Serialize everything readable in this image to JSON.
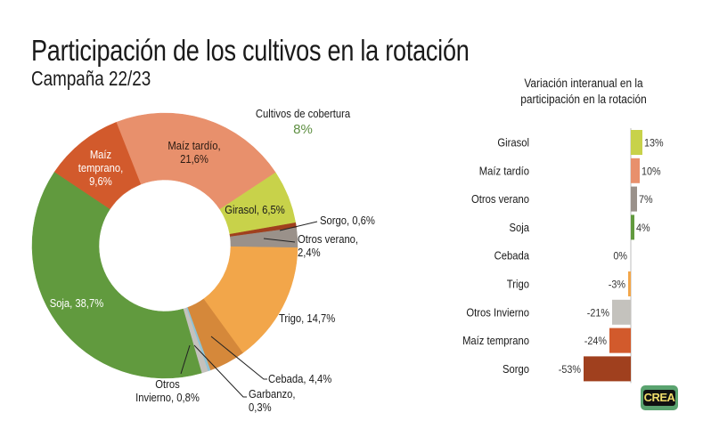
{
  "header": {
    "title": "Participación de los cultivos en la rotación",
    "subtitle": "Campaña 22/23"
  },
  "logo": {
    "text": "CREA"
  },
  "chart_data": [
    {
      "type": "pie",
      "variant": "donut",
      "title": "Participación de los cultivos en la rotación",
      "subtitle": "Campaña 22/23",
      "unit": "%",
      "annotation": {
        "label": "Cultivos de cobertura",
        "value": "8%",
        "color": "#5e8f42"
      },
      "slices": [
        {
          "name": "Maíz tardío",
          "value": 21.6,
          "label_lines": [
            "Maíz tardío,",
            "21,6%"
          ],
          "color": "#e8906c",
          "text_color": "#2a1a12"
        },
        {
          "name": "Girasol",
          "value": 6.5,
          "label_lines": [
            "Girasol, 6,5%"
          ],
          "color": "#c8d24a",
          "text_color": "#1a1a1a"
        },
        {
          "name": "Sorgo",
          "value": 0.6,
          "label_lines": [
            "Sorgo, 0,6%"
          ],
          "color": "#a0401e",
          "text_color": "#1a1a1a"
        },
        {
          "name": "Otros verano",
          "value": 2.4,
          "label_lines": [
            "Otros verano,",
            "2,4%"
          ],
          "color": "#9a918a",
          "text_color": "#1a1a1a"
        },
        {
          "name": "Trigo",
          "value": 14.7,
          "label_lines": [
            "Trigo, 14,7%"
          ],
          "color": "#f2a64a",
          "text_color": "#1a1a1a"
        },
        {
          "name": "Cebada",
          "value": 4.4,
          "label_lines": [
            "Cebada, 4,4%"
          ],
          "color": "#d5883a",
          "text_color": "#1a1a1a"
        },
        {
          "name": "Garbanzo",
          "value": 0.3,
          "label_lines": [
            "Garbanzo,",
            "0,3%"
          ],
          "color": "#8ec3d6",
          "text_color": "#1a1a1a"
        },
        {
          "name": "Otros Invierno",
          "value": 0.8,
          "label_lines": [
            "Otros",
            "Invierno, 0,8%"
          ],
          "color": "#c4c2bd",
          "text_color": "#1a1a1a"
        },
        {
          "name": "Soja",
          "value": 38.7,
          "label_lines": [
            "Soja, 38,7%"
          ],
          "color": "#619a3e",
          "text_color": "#ffffff"
        },
        {
          "name": "Maíz temprano",
          "value": 9.6,
          "label_lines": [
            "Maíz",
            "temprano,",
            "9,6%"
          ],
          "color": "#d25a2c",
          "text_color": "#ffffff"
        }
      ]
    },
    {
      "type": "bar",
      "orientation": "horizontal",
      "title": "Variación interanual en la participación en la rotación",
      "title_lines": [
        "Variación interanual en la",
        "participación en la rotación"
      ],
      "unit": "%",
      "categories": [
        "Girasol",
        "Maíz tardío",
        "Otros verano",
        "Soja",
        "Cebada",
        "Trigo",
        "Otros Invierno",
        "Maíz temprano",
        "Sorgo"
      ],
      "values": [
        13,
        10,
        7,
        4,
        0,
        -3,
        -21,
        -24,
        -53
      ],
      "value_labels": [
        "13%",
        "10%",
        "7%",
        "4%",
        "0%",
        "-3%",
        "-21%",
        "-24%",
        "-53%"
      ],
      "colors": [
        "#c8d24a",
        "#e8906c",
        "#9a918a",
        "#619a3e",
        "#d5883a",
        "#f2a64a",
        "#c4c2bd",
        "#d25a2c",
        "#a0401e"
      ],
      "xlim": [
        -53,
        13
      ]
    }
  ]
}
